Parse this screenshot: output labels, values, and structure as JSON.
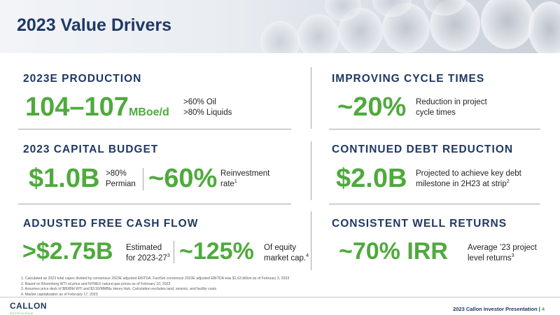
{
  "header": {
    "title": "2023 Value Drivers"
  },
  "sections": {
    "production": {
      "title": "2023E PRODUCTION",
      "value": "104–107",
      "unit": "MBoe/d",
      "note_line1": ">60% Oil",
      "note_line2": ">80% Liquids"
    },
    "cycle": {
      "title": "IMPROVING CYCLE TIMES",
      "value": "~20%",
      "note_line1": "Reduction in project",
      "note_line2": "cycle times"
    },
    "capital": {
      "title": "2023 CAPITAL BUDGET",
      "value1": "$1.0B",
      "note1_line1": ">80%",
      "note1_line2": "Permian",
      "value2": "~60%",
      "note2_line1": "Reinvestment",
      "note2_line2": "rate",
      "note2_sup": "1"
    },
    "debt": {
      "title": "CONTINUED DEBT REDUCTION",
      "value": "$2.0B",
      "note_line1": "Projected to achieve key debt",
      "note_line2": "milestone in 2H23 at strip",
      "note_sup": "2"
    },
    "fcf": {
      "title": "ADJUSTED FREE CASH FLOW",
      "value1": ">$2.75B",
      "note1_line1": "Estimated",
      "note1_line2": "for 2023-27",
      "note1_sup": "3",
      "value2": "~125%",
      "note2_line1": "Of equity",
      "note2_line2": "market cap.",
      "note2_sup": "4"
    },
    "wells": {
      "title": "CONSISTENT WELL RETURNS",
      "value": "~70% IRR",
      "note_line1": "Average ’23 project",
      "note_line2": "level returns",
      "note_sup": "3"
    }
  },
  "footnotes": [
    "1.  Calculated as 2023 total capex divided by consensus 2023E adjusted EBITDA. FactSet consensus 2023E adjusted EBITDA was $1.63 billion as of February 3, 2023",
    "2.  Based on Bloomberg WTI oil price and NYMEX natural gas prices as of February 10, 2023",
    "3.  Assumes price deck of $80/Bbl WTI and $3.50/MMBtu Henry Hub. Calculation excludes land, seismic, and facility costs",
    "4.  Market capitalization as of February 17, 2023"
  ],
  "footer": {
    "logo_text": "CALLON",
    "logo_sub": "PETROLEUM",
    "presentation": "2023 Callon Investor Presentation",
    "separator": "|",
    "page_number": "4"
  },
  "colors": {
    "navy": "#1f3864",
    "green": "#4eaa3c",
    "divider": "#a6a6a6"
  }
}
